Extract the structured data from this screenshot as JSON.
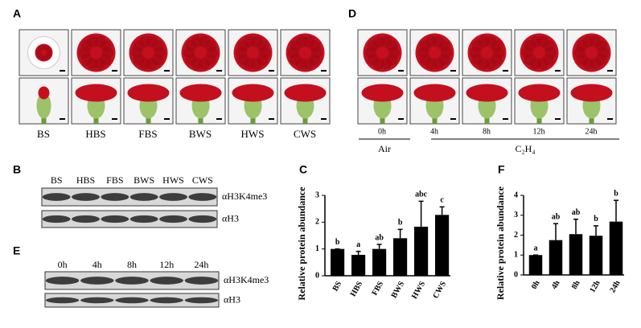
{
  "panels": {
    "a": {
      "label": "A",
      "stages": [
        "BS",
        "HBS",
        "FBS",
        "BWS",
        "HWS",
        "CWS"
      ]
    },
    "d": {
      "label": "D",
      "times": [
        "0h",
        "4h",
        "8h",
        "12h",
        "24h"
      ],
      "groups": [
        "Air",
        "C₂H₄"
      ]
    },
    "b": {
      "label": "B",
      "lanes": [
        "BS",
        "HBS",
        "FBS",
        "BWS",
        "HWS",
        "CWS"
      ],
      "antibodies": [
        "αH3K4me3",
        "αH3"
      ]
    },
    "e": {
      "label": "E",
      "lanes": [
        "0h",
        "4h",
        "8h",
        "12h",
        "24h"
      ],
      "antibodies": [
        "αH3K4me3",
        "αH3"
      ]
    }
  },
  "chart_data": [
    {
      "type": "bar",
      "panel_label": "C",
      "y_label": "Relative protein abundance",
      "categories": [
        "BS",
        "HBS",
        "FBS",
        "BWS",
        "HWS",
        "CWS"
      ],
      "values": [
        1.0,
        0.78,
        1.0,
        1.4,
        1.83,
        2.27
      ],
      "errors": [
        0,
        0.13,
        0.17,
        0.33,
        0.95,
        0.3
      ],
      "annotations": [
        "b",
        "a",
        "ab",
        "b",
        "abc",
        "c"
      ],
      "color": "#000000",
      "ylim": [
        0,
        3
      ],
      "yticks": [
        0,
        1,
        2,
        3
      ]
    },
    {
      "type": "bar",
      "panel_label": "F",
      "y_label": "Relative protein abundance",
      "categories": [
        "0h",
        "4h",
        "8h",
        "12h",
        "24h"
      ],
      "values": [
        1.0,
        1.75,
        2.05,
        1.97,
        2.68
      ],
      "errors": [
        0,
        0.83,
        0.75,
        0.5,
        1.07
      ],
      "annotations": [
        "a",
        "ab",
        "ab",
        "b",
        "b"
      ],
      "color": "#000000",
      "ylim": [
        0,
        4
      ],
      "yticks": [
        0,
        1,
        2,
        3,
        4
      ]
    }
  ]
}
